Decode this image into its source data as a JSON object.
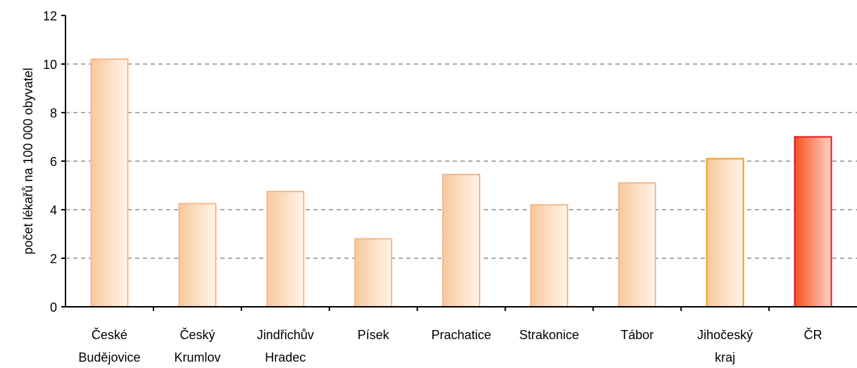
{
  "chart_data": {
    "type": "bar",
    "title": "",
    "xlabel": "",
    "ylabel": "počet lékařů na 100 000 obyvatel",
    "ylim": [
      0,
      12
    ],
    "yticks": [
      0,
      2,
      4,
      6,
      8,
      10,
      12
    ],
    "grid": true,
    "grid_style": "dashed",
    "legend": "none",
    "categories": [
      [
        "České",
        "Budějovice"
      ],
      [
        "Český",
        "Krumlov"
      ],
      [
        "Jindřichův",
        "Hradec"
      ],
      [
        "Písek"
      ],
      [
        "Prachatice"
      ],
      [
        "Strakonice"
      ],
      [
        "Tábor"
      ],
      [
        "Jihočeský",
        "kraj"
      ],
      [
        "ČR"
      ]
    ],
    "values": [
      10.2,
      4.25,
      4.75,
      2.8,
      5.45,
      4.2,
      5.1,
      6.1,
      7.0
    ],
    "bar_colors": [
      {
        "fill_start": "#f9c89b",
        "fill_end": "#fff4ea",
        "stroke": "#f3b98a"
      },
      {
        "fill_start": "#f9c89b",
        "fill_end": "#fff4ea",
        "stroke": "#f3b98a"
      },
      {
        "fill_start": "#f9c89b",
        "fill_end": "#fff4ea",
        "stroke": "#f3b98a"
      },
      {
        "fill_start": "#f9c89b",
        "fill_end": "#fff4ea",
        "stroke": "#f3b98a"
      },
      {
        "fill_start": "#f9c89b",
        "fill_end": "#fff4ea",
        "stroke": "#f3b98a"
      },
      {
        "fill_start": "#f9c89b",
        "fill_end": "#fff4ea",
        "stroke": "#f3b98a"
      },
      {
        "fill_start": "#f9c89b",
        "fill_end": "#fff4ea",
        "stroke": "#f3b98a"
      },
      {
        "fill_start": "#f9c89b",
        "fill_end": "#fff4ea",
        "stroke": "#f39a1e"
      },
      {
        "fill_start": "#f5521f",
        "fill_end": "#ffd2c4",
        "stroke": "#e3141b"
      }
    ]
  }
}
